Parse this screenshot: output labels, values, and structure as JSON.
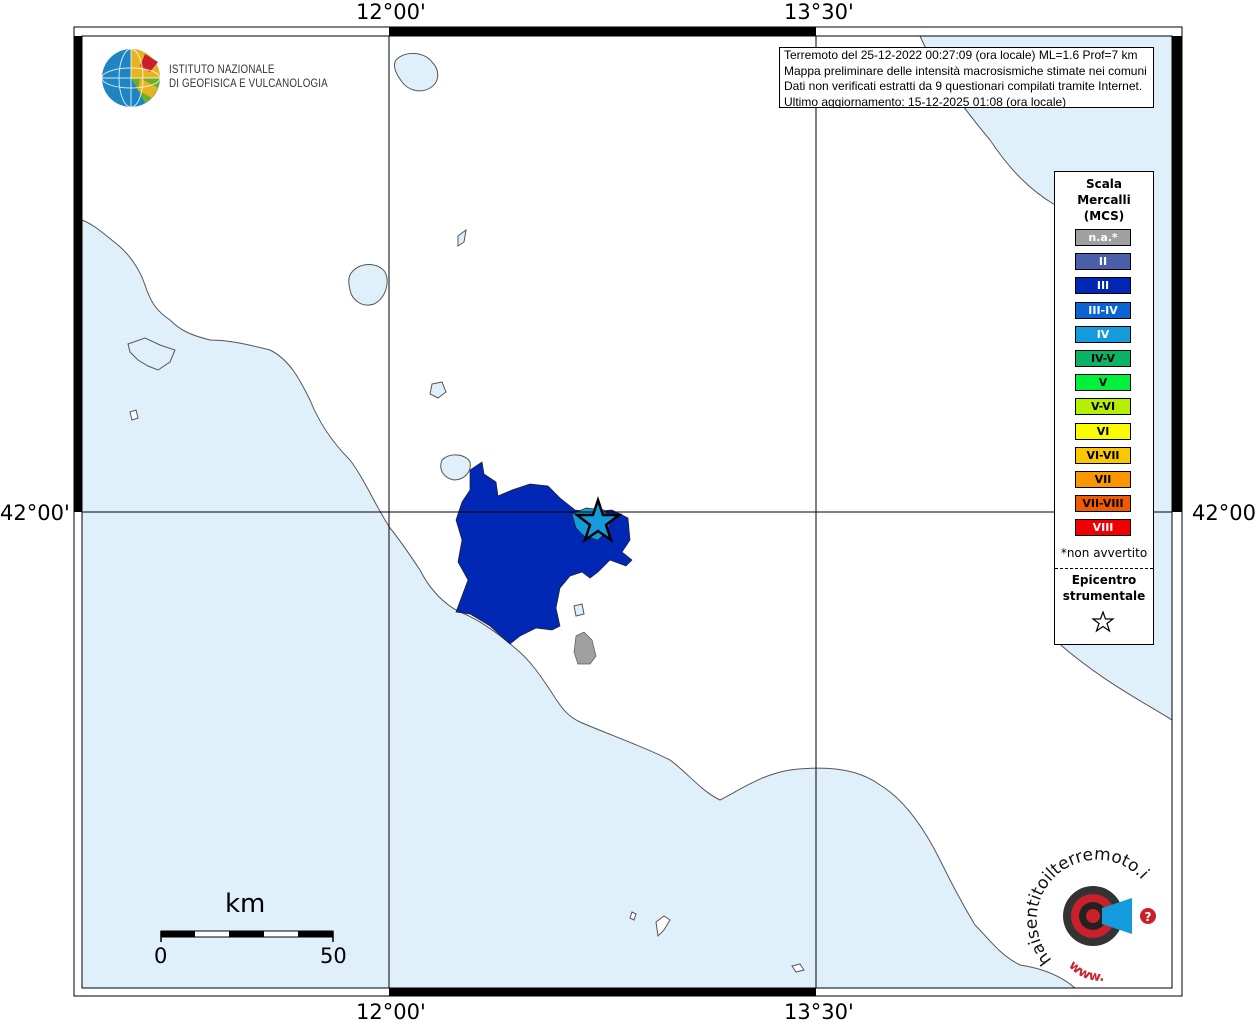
{
  "map": {
    "colors": {
      "sea": "#dff0fb",
      "land": "#ffffff",
      "intensity_III": "#0028b4",
      "intensity_IV": "#149bdc",
      "not_felt": "#a0a0a0"
    },
    "frame_labels": {
      "lon_left": "12°00'",
      "lon_right": "13°30'",
      "lat_mid": "42°00'"
    },
    "epicenter_marker": "star-icon"
  },
  "logo": {
    "icon": "ingv-globe-icon",
    "line1": "ISTITUTO NAZIONALE",
    "line2": "DI GEOFISICA E VULCANOLOGIA"
  },
  "info_box": {
    "line1": "Terremoto del 25-12-2022 00:27:09 (ora locale) ML=1.6 Prof=7 km",
    "line2": "Mappa preliminare delle intensità macrosismiche stimate nei comuni",
    "line3": "Dati non verificati estratti da 9 questionari compilati tramite Internet.",
    "line4": "Ultimo aggiornamento: 15-12-2025 01:08 (ora locale)"
  },
  "legend": {
    "title": "Scala\nMercalli\n(MCS)",
    "items": [
      {
        "label": "n.a.*",
        "color": "#a0a0a0",
        "text_color": "#ffffff"
      },
      {
        "label": "II",
        "color": "#4a5eaa",
        "text_color": "#ffffff"
      },
      {
        "label": "III",
        "color": "#0028b4",
        "text_color": "#ffffff"
      },
      {
        "label": "III-IV",
        "color": "#0a64d2",
        "text_color": "#ffffff"
      },
      {
        "label": "IV",
        "color": "#149bdc",
        "text_color": "#ffffff"
      },
      {
        "label": "IV-V",
        "color": "#0ab464",
        "text_color": "#000000"
      },
      {
        "label": "V",
        "color": "#00f03c",
        "text_color": "#000000"
      },
      {
        "label": "V-VI",
        "color": "#b4f000",
        "text_color": "#000000"
      },
      {
        "label": "VI",
        "color": "#fafa00",
        "text_color": "#000000"
      },
      {
        "label": "VI-VII",
        "color": "#fac800",
        "text_color": "#000000"
      },
      {
        "label": "VII",
        "color": "#fa9600",
        "text_color": "#000000"
      },
      {
        "label": "VII-VIII",
        "color": "#f05a00",
        "text_color": "#000000"
      },
      {
        "label": "VIII",
        "color": "#f00000",
        "text_color": "#ffffff"
      }
    ],
    "note": "*non avvertito",
    "epicenter_label": "Epicentro\nstrumentale",
    "epicenter_icon": "star-outline-icon"
  },
  "scale_bar": {
    "unit": "km",
    "min": "0",
    "max": "50"
  },
  "watermark": {
    "icon": "haisentito-logo-icon",
    "text": "haisentitoilterremoto.it",
    "url_text": "www."
  }
}
